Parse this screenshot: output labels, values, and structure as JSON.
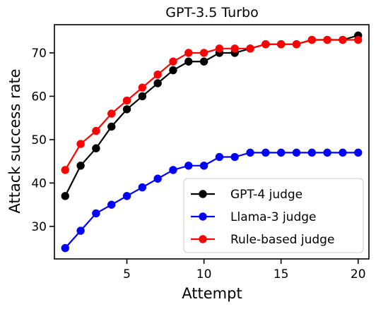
{
  "chart_data": {
    "type": "line",
    "title": "GPT-3.5 Turbo",
    "xlabel": "Attempt",
    "ylabel": "Attack success rate",
    "xlim": [
      0.3,
      20.7
    ],
    "ylim": [
      22.5,
      76.5
    ],
    "xticks": [
      5,
      10,
      15,
      20
    ],
    "yticks": [
      30,
      40,
      50,
      60,
      70
    ],
    "grid": false,
    "legend_position": "lower-right",
    "x": [
      1,
      2,
      3,
      4,
      5,
      6,
      7,
      8,
      9,
      10,
      11,
      12,
      13,
      14,
      15,
      16,
      17,
      18,
      19,
      20
    ],
    "series": [
      {
        "name": "GPT-4 judge",
        "color": "#000000",
        "values": [
          37,
          44,
          48,
          53,
          57,
          60,
          63,
          66,
          68,
          68,
          70,
          70,
          71,
          72,
          72,
          72,
          73,
          73,
          73,
          74
        ]
      },
      {
        "name": "Llama-3 judge",
        "color": "#0000ff",
        "values": [
          25,
          29,
          33,
          35,
          37,
          39,
          41,
          43,
          44,
          44,
          46,
          46,
          47,
          47,
          47,
          47,
          47,
          47,
          47,
          47
        ]
      },
      {
        "name": "Rule-based judge",
        "color": "#ff0000",
        "values": [
          43,
          49,
          52,
          56,
          59,
          62,
          65,
          68,
          70,
          70,
          71,
          71,
          71,
          72,
          72,
          72,
          73,
          73,
          73,
          73
        ]
      }
    ]
  }
}
